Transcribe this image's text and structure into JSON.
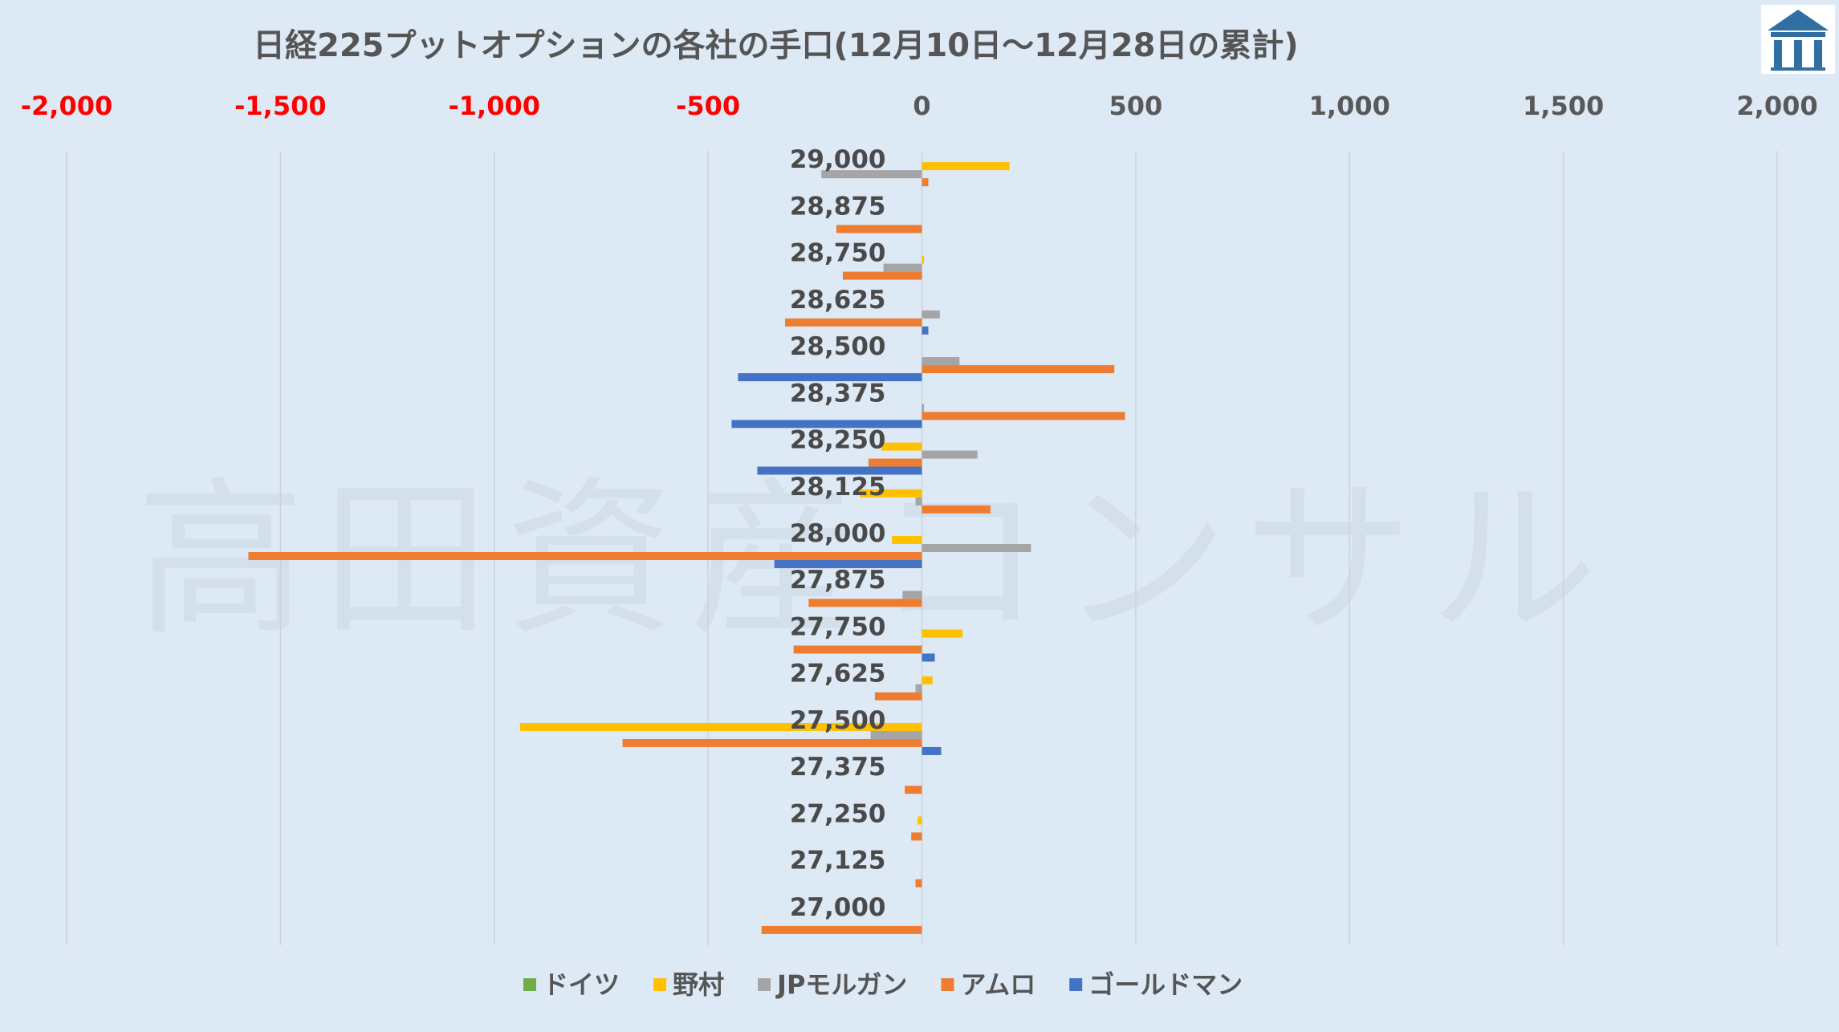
{
  "chart_data": {
    "type": "bar",
    "orientation": "horizontal",
    "title": "日経225プットオプションの各社の手口(12月10日～12月28日の累計)",
    "watermark": "高田資産コンサル",
    "xlim": [
      -2000,
      2000
    ],
    "x_ticks": [
      -2000,
      -1500,
      -1000,
      -500,
      0,
      500,
      1000,
      1500,
      2000
    ],
    "x_tick_labels": [
      "-2,000",
      "-1,500",
      "-1,000",
      "-500",
      "0",
      "500",
      "1,000",
      "1,500",
      "2,000"
    ],
    "negative_tick_color": "#ff0000",
    "positive_tick_color": "#595959",
    "grid": "vertical",
    "legend_position": "bottom",
    "categories": [
      "29,000",
      "28,875",
      "28,750",
      "28,625",
      "28,500",
      "28,375",
      "28,250",
      "28,125",
      "28,000",
      "27,875",
      "27,750",
      "27,625",
      "27,500",
      "27,375",
      "27,250",
      "27,125",
      "27,000"
    ],
    "series": [
      {
        "name": "ドイツ",
        "color": "#70ad47",
        "values": [
          0,
          0,
          0,
          0,
          0,
          0,
          0,
          0,
          0,
          0,
          0,
          0,
          0,
          0,
          0,
          0,
          0
        ]
      },
      {
        "name": "野村",
        "color": "#ffc000",
        "values": [
          205,
          0,
          5,
          0,
          0,
          0,
          -95,
          -145,
          -70,
          0,
          95,
          25,
          -940,
          0,
          -10,
          0,
          0
        ]
      },
      {
        "name": "JPモルガン",
        "color": "#a5a5a5",
        "values": [
          -235,
          0,
          -90,
          42,
          88,
          5,
          130,
          -15,
          255,
          -45,
          0,
          -15,
          -120,
          0,
          0,
          0,
          0
        ]
      },
      {
        "name": "アムロ",
        "color": "#ed7d31",
        "values": [
          15,
          -200,
          -185,
          -320,
          450,
          475,
          -125,
          160,
          -1575,
          -265,
          -300,
          -110,
          -700,
          -40,
          -25,
          -15,
          -375
        ]
      },
      {
        "name": "ゴールドマン",
        "color": "#4472c4",
        "values": [
          0,
          0,
          0,
          15,
          -430,
          -445,
          -385,
          0,
          -345,
          0,
          30,
          0,
          45,
          0,
          0,
          0,
          0
        ]
      }
    ]
  }
}
